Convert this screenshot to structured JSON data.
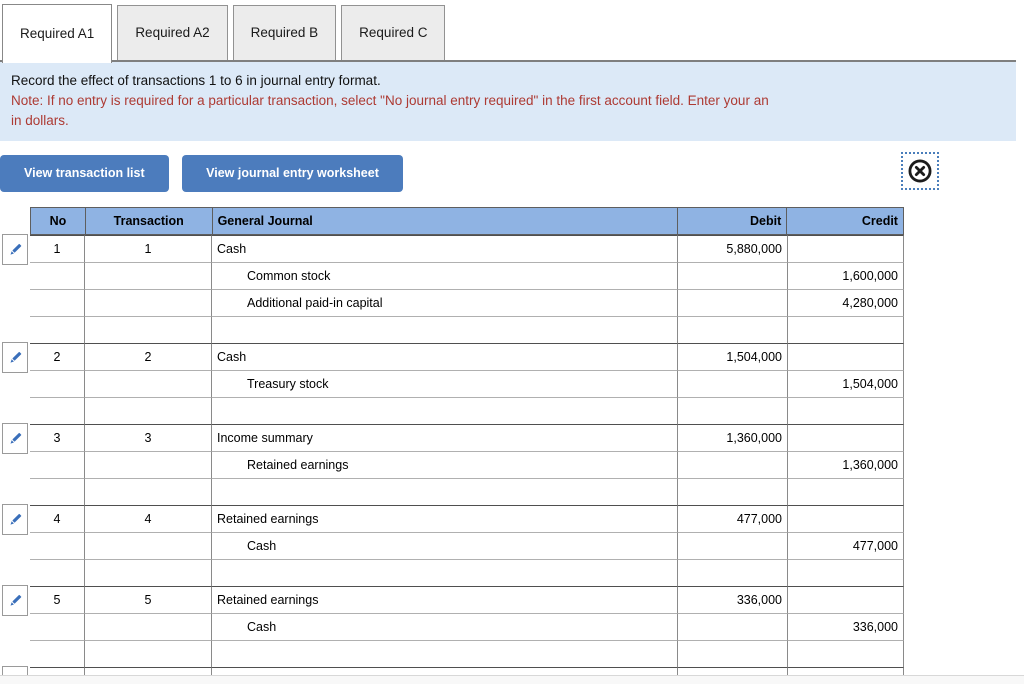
{
  "tabs": {
    "items": [
      {
        "label": "Required A1",
        "active": true
      },
      {
        "label": "Required A2",
        "active": false
      },
      {
        "label": "Required B",
        "active": false
      },
      {
        "label": "Required C",
        "active": false
      }
    ]
  },
  "instructions": {
    "line1": "Record the effect of transactions 1 to 6 in journal entry format.",
    "note_line1": "Note: If no entry is required for a particular transaction, select \"No journal entry required\" in the first account field. Enter your an",
    "note_line2": "in dollars."
  },
  "toolbar": {
    "buttons": [
      {
        "label": "View transaction list"
      },
      {
        "label": "View journal entry worksheet"
      }
    ],
    "close_icon": "circled-x-icon"
  },
  "journal": {
    "columns": [
      "No",
      "Transaction",
      "General Journal",
      "Debit",
      "Credit"
    ],
    "rows": [
      {
        "no": "1",
        "txn": "1",
        "account": "Cash",
        "indent": false,
        "debit": "5,880,000",
        "credit": "",
        "group_start": true,
        "partial": false
      },
      {
        "no": "",
        "txn": "",
        "account": "Common stock",
        "indent": true,
        "debit": "",
        "credit": "1,600,000",
        "group_start": false,
        "partial": false
      },
      {
        "no": "",
        "txn": "",
        "account": "Additional paid-in capital",
        "indent": true,
        "debit": "",
        "credit": "4,280,000",
        "group_start": false,
        "partial": false
      },
      {
        "no": "",
        "txn": "",
        "account": "",
        "indent": false,
        "debit": "",
        "credit": "",
        "group_start": false,
        "partial": false
      },
      {
        "no": "2",
        "txn": "2",
        "account": "Cash",
        "indent": false,
        "debit": "1,504,000",
        "credit": "",
        "group_start": true,
        "partial": false
      },
      {
        "no": "",
        "txn": "",
        "account": "Treasury stock",
        "indent": true,
        "debit": "",
        "credit": "1,504,000",
        "group_start": false,
        "partial": false
      },
      {
        "no": "",
        "txn": "",
        "account": "",
        "indent": false,
        "debit": "",
        "credit": "",
        "group_start": false,
        "partial": false
      },
      {
        "no": "3",
        "txn": "3",
        "account": "Income summary",
        "indent": false,
        "debit": "1,360,000",
        "credit": "",
        "group_start": true,
        "partial": false
      },
      {
        "no": "",
        "txn": "",
        "account": "Retained earnings",
        "indent": true,
        "debit": "",
        "credit": "1,360,000",
        "group_start": false,
        "partial": false
      },
      {
        "no": "",
        "txn": "",
        "account": "",
        "indent": false,
        "debit": "",
        "credit": "",
        "group_start": false,
        "partial": false
      },
      {
        "no": "4",
        "txn": "4",
        "account": "Retained earnings",
        "indent": false,
        "debit": "477,000",
        "credit": "",
        "group_start": true,
        "partial": false
      },
      {
        "no": "",
        "txn": "",
        "account": "Cash",
        "indent": true,
        "debit": "",
        "credit": "477,000",
        "group_start": false,
        "partial": false
      },
      {
        "no": "",
        "txn": "",
        "account": "",
        "indent": false,
        "debit": "",
        "credit": "",
        "group_start": false,
        "partial": false
      },
      {
        "no": "5",
        "txn": "5",
        "account": "Retained earnings",
        "indent": false,
        "debit": "336,000",
        "credit": "",
        "group_start": true,
        "partial": false
      },
      {
        "no": "",
        "txn": "",
        "account": "Cash",
        "indent": true,
        "debit": "",
        "credit": "336,000",
        "group_start": false,
        "partial": false
      },
      {
        "no": "",
        "txn": "",
        "account": "",
        "indent": false,
        "debit": "",
        "credit": "",
        "group_start": false,
        "partial": false
      },
      {
        "no": "",
        "txn": "",
        "account": "",
        "indent": false,
        "debit": "",
        "credit": "",
        "group_start": true,
        "partial": true
      }
    ]
  },
  "colors": {
    "header_blue": "#8fb3e3",
    "button_blue": "#4c7cbd",
    "info_bg": "#dce9f7",
    "note_red": "#ad3a33",
    "pencil_blue": "#3a6fba"
  }
}
